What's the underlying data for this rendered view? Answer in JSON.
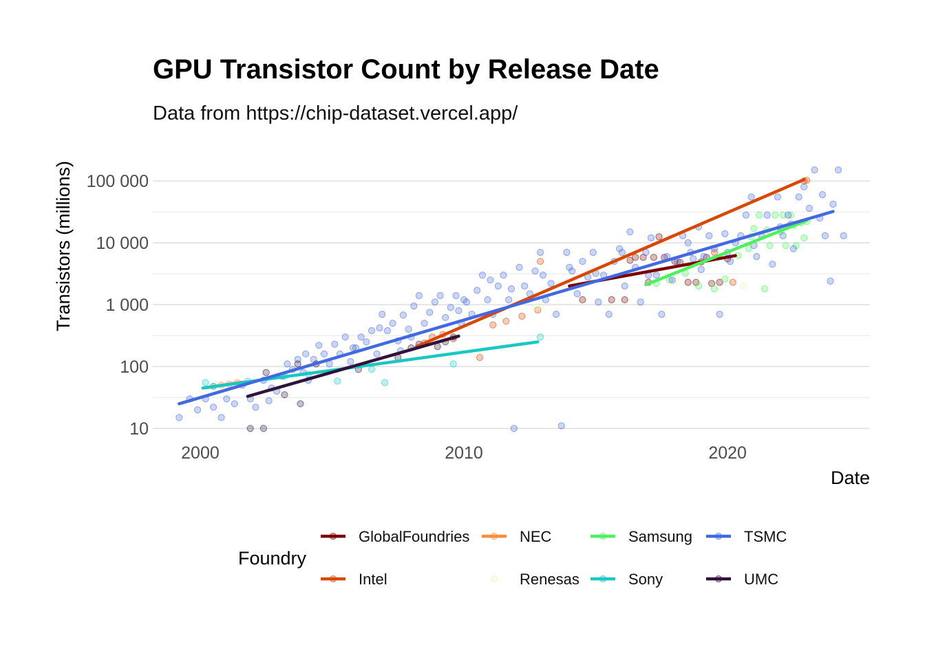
{
  "chart_data": {
    "type": "scatter",
    "title": "GPU Transistor Count by Release Date",
    "subtitle": "Data from https://chip-dataset.vercel.app/",
    "xlabel": "Date",
    "ylabel": "Transistors (millions)",
    "xlim": [
      1998.2,
      2025.4
    ],
    "ylim": [
      6.5,
      200000
    ],
    "y_scale": "log",
    "x_ticks": [
      2000,
      2010,
      2020
    ],
    "x_tick_labels": [
      "2000",
      "2010",
      "2020"
    ],
    "y_ticks": [
      10,
      100,
      1000,
      10000,
      100000
    ],
    "y_tick_labels": [
      "10",
      "100",
      "1 000",
      "10 000",
      "100 000"
    ],
    "grid": true,
    "legend": {
      "title": "Foundry",
      "position": "bottom",
      "entries": [
        "GlobalFoundries",
        "Intel",
        "NEC",
        "Renesas",
        "Samsung",
        "Sony",
        "TSMC",
        "UMC"
      ]
    },
    "series": [
      {
        "name": "GlobalFoundries",
        "color": "#7a0403",
        "trend": [
          [
            2014.0,
            2000
          ],
          [
            2020.3,
            6200
          ]
        ],
        "points": [
          [
            2014.5,
            1200
          ],
          [
            2015.6,
            1200
          ],
          [
            2016.1,
            1200
          ],
          [
            2016.5,
            5800
          ],
          [
            2016.8,
            5800
          ],
          [
            2017.2,
            5800
          ],
          [
            2017.6,
            5800
          ],
          [
            2017.4,
            12500
          ],
          [
            2018.0,
            5000
          ],
          [
            2018.2,
            4800
          ],
          [
            2018.5,
            2300
          ],
          [
            2018.8,
            2300
          ],
          [
            2019.0,
            4900
          ],
          [
            2019.2,
            5800
          ],
          [
            2019.4,
            2200
          ],
          [
            2019.7,
            2300
          ],
          [
            2020.0,
            5500
          ],
          [
            2017.0,
            2300
          ],
          [
            2016.3,
            5200
          ]
        ]
      },
      {
        "name": "Intel",
        "color": "#d94701",
        "trend": [
          [
            2008.2,
            210
          ],
          [
            2022.9,
            105000
          ]
        ],
        "points": [
          [
            2008.5,
            240
          ],
          [
            2008.8,
            300
          ],
          [
            2009.2,
            330
          ],
          [
            2009.6,
            280
          ],
          [
            2011.1,
            470
          ],
          [
            2011.6,
            540
          ],
          [
            2012.2,
            650
          ],
          [
            2012.8,
            820
          ],
          [
            2012.9,
            5000
          ],
          [
            2010.6,
            140
          ],
          [
            2019.5,
            7000
          ],
          [
            2020.2,
            2300
          ],
          [
            2022.9,
            100000
          ],
          [
            2023.0,
            102000
          ]
        ]
      },
      {
        "name": "NEC",
        "color": "#fd8d3c",
        "trend": [
          [
            2000.3,
            46
          ],
          [
            2001.6,
            56
          ]
        ],
        "points": [
          [
            2000.5,
            48
          ],
          [
            2000.8,
            50
          ],
          [
            2001.1,
            52
          ],
          [
            2001.4,
            55
          ]
        ]
      },
      {
        "name": "Renesas",
        "color": "#e5f5b8",
        "trend": [],
        "points": [
          [
            2012.7,
            900
          ],
          [
            2012.9,
            950
          ],
          [
            2018.0,
            2400
          ],
          [
            2020.6,
            2000
          ]
        ]
      },
      {
        "name": "Samsung",
        "color": "#4cf25b",
        "trend": [
          [
            2016.9,
            2100
          ],
          [
            2023.0,
            23000
          ]
        ],
        "points": [
          [
            2017.3,
            2200
          ],
          [
            2017.8,
            2500
          ],
          [
            2018.4,
            3200
          ],
          [
            2018.9,
            2000
          ],
          [
            2019.5,
            1800
          ],
          [
            2019.9,
            2600
          ],
          [
            2020.4,
            6200
          ],
          [
            2020.8,
            8000
          ],
          [
            2021.0,
            17000
          ],
          [
            2021.2,
            28000
          ],
          [
            2021.4,
            1800
          ],
          [
            2021.6,
            9000
          ],
          [
            2021.8,
            28000
          ],
          [
            2022.0,
            15000
          ],
          [
            2022.2,
            9000
          ],
          [
            2022.4,
            28000
          ],
          [
            2022.6,
            9000
          ],
          [
            2022.8,
            21000
          ],
          [
            2022.9,
            12000
          ],
          [
            2023.0,
            22000
          ],
          [
            2022.1,
            28000
          ],
          [
            2021.5,
            16000
          ],
          [
            2020.9,
            12500
          ],
          [
            2022.5,
            19000
          ]
        ]
      },
      {
        "name": "Sony",
        "color": "#1ac7c2",
        "trend": [
          [
            2000.1,
            45
          ],
          [
            2012.8,
            250
          ]
        ],
        "points": [
          [
            2000.2,
            55
          ],
          [
            2000.5,
            48
          ],
          [
            2001.8,
            58
          ],
          [
            2003.2,
            70
          ],
          [
            2004.1,
            75
          ],
          [
            2005.2,
            58
          ],
          [
            2006.5,
            90
          ],
          [
            2007.0,
            55
          ],
          [
            2009.6,
            110
          ],
          [
            2012.9,
            300
          ]
        ]
      },
      {
        "name": "TSMC",
        "color": "#4169e1",
        "trend": [
          [
            1999.2,
            25
          ],
          [
            2024.0,
            32000
          ]
        ],
        "points": [
          [
            1999.2,
            15
          ],
          [
            1999.6,
            30
          ],
          [
            1999.9,
            20
          ],
          [
            2000.2,
            30
          ],
          [
            2000.5,
            22
          ],
          [
            2000.8,
            15
          ],
          [
            2001.0,
            30
          ],
          [
            2001.3,
            25
          ],
          [
            2001.6,
            50
          ],
          [
            2001.9,
            30
          ],
          [
            2002.1,
            22
          ],
          [
            2002.4,
            60
          ],
          [
            2002.7,
            45
          ],
          [
            2002.9,
            40
          ],
          [
            2003.1,
            70
          ],
          [
            2003.3,
            110
          ],
          [
            2003.5,
            90
          ],
          [
            2003.7,
            130
          ],
          [
            2003.9,
            80
          ],
          [
            2004.1,
            60
          ],
          [
            2004.3,
            130
          ],
          [
            2004.5,
            220
          ],
          [
            2004.7,
            160
          ],
          [
            2004.9,
            110
          ],
          [
            2005.1,
            230
          ],
          [
            2005.3,
            160
          ],
          [
            2005.5,
            300
          ],
          [
            2005.7,
            120
          ],
          [
            2005.9,
            200
          ],
          [
            2006.1,
            300
          ],
          [
            2006.3,
            250
          ],
          [
            2006.5,
            380
          ],
          [
            2006.7,
            160
          ],
          [
            2006.9,
            700
          ],
          [
            2007.1,
            380
          ],
          [
            2007.3,
            500
          ],
          [
            2007.5,
            260
          ],
          [
            2007.7,
            680
          ],
          [
            2007.9,
            400
          ],
          [
            2008.1,
            950
          ],
          [
            2008.3,
            1400
          ],
          [
            2008.5,
            500
          ],
          [
            2008.7,
            750
          ],
          [
            2008.9,
            1100
          ],
          [
            2009.1,
            1400
          ],
          [
            2009.3,
            620
          ],
          [
            2009.5,
            900
          ],
          [
            2009.7,
            1400
          ],
          [
            2009.9,
            500
          ],
          [
            2010.1,
            1100
          ],
          [
            2010.3,
            700
          ],
          [
            2010.5,
            1700
          ],
          [
            2010.7,
            3000
          ],
          [
            2010.9,
            1200
          ],
          [
            2011.1,
            700
          ],
          [
            2011.3,
            2000
          ],
          [
            2011.5,
            3000
          ],
          [
            2011.7,
            1200
          ],
          [
            2011.9,
            10
          ],
          [
            2012.1,
            4000
          ],
          [
            2012.3,
            2000
          ],
          [
            2012.5,
            1500
          ],
          [
            2012.7,
            3500
          ],
          [
            2012.9,
            7000
          ],
          [
            2013.1,
            1200
          ],
          [
            2013.3,
            2200
          ],
          [
            2013.5,
            700
          ],
          [
            2013.7,
            11
          ],
          [
            2013.9,
            7000
          ],
          [
            2014.1,
            3500
          ],
          [
            2014.3,
            1500
          ],
          [
            2014.5,
            5000
          ],
          [
            2014.7,
            2800
          ],
          [
            2014.9,
            7000
          ],
          [
            2015.1,
            1100
          ],
          [
            2015.3,
            3000
          ],
          [
            2015.5,
            700
          ],
          [
            2015.7,
            5000
          ],
          [
            2015.9,
            8000
          ],
          [
            2016.1,
            2000
          ],
          [
            2016.3,
            15000
          ],
          [
            2016.5,
            4000
          ],
          [
            2016.7,
            1100
          ],
          [
            2016.9,
            7000
          ],
          [
            2017.1,
            12000
          ],
          [
            2017.3,
            3000
          ],
          [
            2017.5,
            700
          ],
          [
            2017.7,
            6000
          ],
          [
            2017.9,
            2500
          ],
          [
            2018.1,
            5000
          ],
          [
            2018.3,
            13000
          ],
          [
            2018.5,
            10000
          ],
          [
            2018.7,
            5500
          ],
          [
            2018.9,
            18000
          ],
          [
            2019.1,
            6000
          ],
          [
            2019.3,
            13000
          ],
          [
            2019.5,
            8000
          ],
          [
            2019.7,
            700
          ],
          [
            2019.9,
            14000
          ],
          [
            2020.1,
            5000
          ],
          [
            2020.3,
            10000
          ],
          [
            2020.5,
            13000
          ],
          [
            2020.7,
            28000
          ],
          [
            2020.9,
            55000
          ],
          [
            2021.1,
            6000
          ],
          [
            2021.3,
            13000
          ],
          [
            2021.5,
            28000
          ],
          [
            2021.7,
            4500
          ],
          [
            2021.9,
            55000
          ],
          [
            2022.1,
            13000
          ],
          [
            2022.3,
            28000
          ],
          [
            2022.5,
            8000
          ],
          [
            2022.7,
            55000
          ],
          [
            2022.9,
            80000
          ],
          [
            2023.1,
            36000
          ],
          [
            2023.3,
            150000
          ],
          [
            2023.5,
            25000
          ],
          [
            2023.7,
            13000
          ],
          [
            2023.9,
            2400
          ],
          [
            2024.0,
            42000
          ],
          [
            2024.2,
            150000
          ],
          [
            2024.4,
            13000
          ],
          [
            2008.0,
            300
          ],
          [
            2007.6,
            180
          ],
          [
            2006.8,
            420
          ],
          [
            2005.8,
            200
          ],
          [
            2004.0,
            160
          ],
          [
            2010.0,
            1200
          ],
          [
            2011.0,
            2500
          ],
          [
            2013.0,
            3000
          ],
          [
            2015.0,
            3200
          ],
          [
            2016.0,
            7000
          ],
          [
            2019.0,
            3700
          ],
          [
            2020.0,
            7000
          ],
          [
            2022.0,
            18000
          ],
          [
            2023.6,
            60000
          ],
          [
            2002.6,
            28
          ],
          [
            2009.8,
            800
          ],
          [
            2011.8,
            1800
          ],
          [
            2014.0,
            4000
          ],
          [
            2017.0,
            3000
          ],
          [
            2018.6,
            7000
          ],
          [
            2021.0,
            9000
          ],
          [
            2022.4,
            20000
          ]
        ]
      },
      {
        "name": "UMC",
        "color": "#30123b",
        "trend": [
          [
            2001.8,
            33
          ],
          [
            2009.8,
            310
          ]
        ],
        "points": [
          [
            2001.9,
            10
          ],
          [
            2002.4,
            10
          ],
          [
            2002.5,
            80
          ],
          [
            2003.2,
            35
          ],
          [
            2003.7,
            110
          ],
          [
            2003.8,
            25
          ],
          [
            2004.4,
            110
          ],
          [
            2006.0,
            90
          ],
          [
            2007.5,
            140
          ],
          [
            2008.0,
            200
          ],
          [
            2008.3,
            230
          ],
          [
            2009.0,
            210
          ],
          [
            2009.3,
            250
          ],
          [
            2009.6,
            300
          ]
        ]
      }
    ]
  }
}
